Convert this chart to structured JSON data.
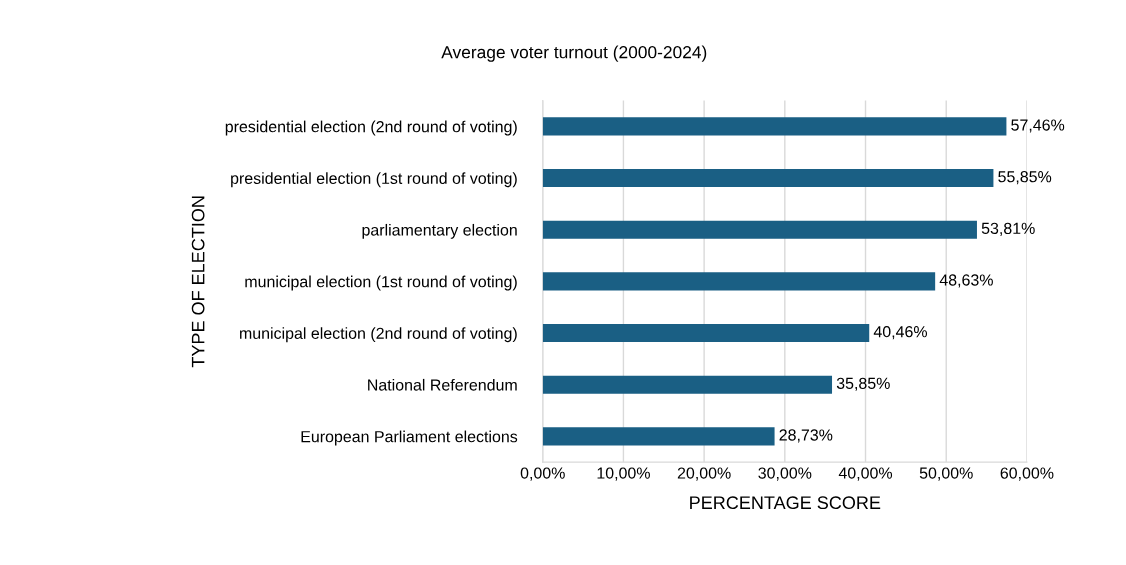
{
  "chart_data": {
    "type": "bar",
    "orientation": "horizontal",
    "title": "Average voter turnout (2000-2024)",
    "xlabel": "PERCENTAGE SCORE",
    "ylabel": "TYPE OF ELECTION",
    "categories": [
      "presidential election (2nd round of voting)",
      "presidential election (1st round of voting)",
      "parliamentary election",
      "municipal election (1st round of voting)",
      "municipal election (2nd round of voting)",
      "National Referendum",
      "European Parliament elections"
    ],
    "values": [
      57.46,
      55.85,
      53.81,
      48.63,
      40.46,
      35.85,
      28.73
    ],
    "value_labels": [
      "57,46%",
      "55,85%",
      "53,81%",
      "48,63%",
      "40,46%",
      "35,85%",
      "28,73%"
    ],
    "color": "#1a5f84",
    "xlim": [
      0,
      60
    ],
    "xticks": [
      {
        "value": 0,
        "label": "0,00%"
      },
      {
        "value": 10,
        "label": "10,00%"
      },
      {
        "value": 20,
        "label": "20,00%"
      },
      {
        "value": 30,
        "label": "30,00%"
      },
      {
        "value": 40,
        "label": "40,00%"
      },
      {
        "value": 50,
        "label": "50,00%"
      },
      {
        "value": 60,
        "label": "60,00%"
      }
    ],
    "grid": "x",
    "legend": false
  }
}
